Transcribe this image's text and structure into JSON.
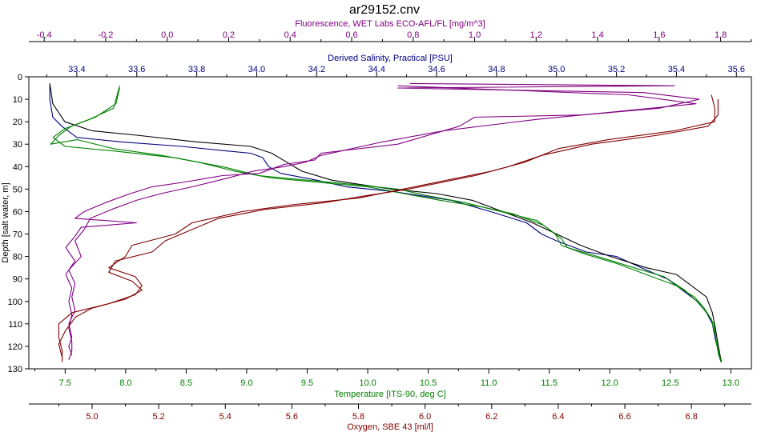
{
  "chart_data": {
    "type": "line",
    "title": "ar29152.cnv",
    "grid": false,
    "legend": "none",
    "y_axis": {
      "label": "Depth [salt water, m]",
      "range": [
        0,
        130
      ],
      "reversed": true,
      "ticks": [
        0,
        10,
        20,
        30,
        40,
        50,
        60,
        70,
        80,
        90,
        100,
        110,
        120,
        130
      ],
      "color": "#000000"
    },
    "x_axes": [
      {
        "key": "fluor",
        "label": "Fluorescence, WET Labs ECO-AFL/FL [mg/m^3]",
        "range": [
          -0.45,
          1.9
        ],
        "ticks": [
          -0.4,
          -0.2,
          0.0,
          0.2,
          0.4,
          0.6,
          0.8,
          1.0,
          1.2,
          1.4,
          1.6,
          1.8
        ],
        "color": "#800080",
        "position": "top-outer"
      },
      {
        "key": "sal",
        "label": "Derived Salinity, Practical [PSU]",
        "range": [
          33.24,
          35.65
        ],
        "ticks": [
          33.4,
          33.6,
          33.8,
          34.0,
          34.2,
          34.4,
          34.6,
          34.8,
          35.0,
          35.2,
          35.4,
          35.6
        ],
        "color": "#000080",
        "position": "top-inner"
      },
      {
        "key": "temp",
        "label": "Temperature [ITS-90, deg C]",
        "range": [
          7.2,
          13.17
        ],
        "ticks": [
          7.5,
          8.0,
          8.5,
          9.0,
          9.5,
          10.0,
          10.5,
          11.0,
          11.5,
          12.0,
          12.5,
          13.0
        ],
        "color": "#008000",
        "position": "bottom-inner"
      },
      {
        "key": "oxy",
        "label": "Oxygen, SBE 43 [ml/l]",
        "range": [
          4.81,
          6.98
        ],
        "ticks": [
          5.0,
          5.2,
          5.4,
          5.6,
          5.8,
          6.0,
          6.2,
          6.4,
          6.6,
          6.8
        ],
        "color": "#800000",
        "position": "bottom-outer"
      }
    ],
    "series": [
      {
        "axis": "sal",
        "color": "#000080",
        "points": [
          [
            33.31,
            3
          ],
          [
            33.31,
            10
          ],
          [
            33.32,
            18
          ],
          [
            33.35,
            22
          ],
          [
            33.4,
            27
          ],
          [
            33.55,
            29
          ],
          [
            33.75,
            31
          ],
          [
            33.9,
            33
          ],
          [
            33.98,
            34
          ],
          [
            34.02,
            36
          ],
          [
            34.04,
            40
          ],
          [
            34.08,
            43
          ],
          [
            34.2,
            46
          ],
          [
            34.3,
            49
          ],
          [
            34.45,
            51
          ],
          [
            34.55,
            53
          ],
          [
            34.65,
            55
          ],
          [
            34.78,
            60
          ],
          [
            34.9,
            65
          ],
          [
            34.95,
            70
          ],
          [
            35.0,
            73
          ],
          [
            35.1,
            78
          ],
          [
            35.2,
            80
          ],
          [
            35.3,
            86
          ],
          [
            35.37,
            90
          ],
          [
            35.42,
            95
          ],
          [
            35.47,
            100
          ],
          [
            35.5,
            105
          ],
          [
            35.52,
            110
          ],
          [
            35.53,
            117
          ],
          [
            35.54,
            122
          ],
          [
            35.55,
            127
          ]
        ]
      },
      {
        "axis": "sal",
        "color": "#000000",
        "points": [
          [
            33.31,
            3
          ],
          [
            33.32,
            12
          ],
          [
            33.36,
            20
          ],
          [
            33.45,
            24
          ],
          [
            33.6,
            26
          ],
          [
            33.8,
            29
          ],
          [
            33.98,
            31
          ],
          [
            34.05,
            34
          ],
          [
            34.1,
            38
          ],
          [
            34.15,
            42
          ],
          [
            34.25,
            46
          ],
          [
            34.35,
            48
          ],
          [
            34.45,
            50
          ],
          [
            34.6,
            52
          ],
          [
            34.72,
            55
          ],
          [
            34.82,
            60
          ],
          [
            34.92,
            65
          ],
          [
            35.0,
            70
          ],
          [
            35.08,
            75
          ],
          [
            35.18,
            80
          ],
          [
            35.3,
            85
          ],
          [
            35.4,
            88
          ],
          [
            35.45,
            93
          ],
          [
            35.5,
            98
          ],
          [
            35.52,
            105
          ],
          [
            35.53,
            112
          ],
          [
            35.54,
            120
          ],
          [
            35.55,
            127
          ]
        ]
      },
      {
        "axis": "temp",
        "color": "#008000",
        "points": [
          [
            7.95,
            5
          ],
          [
            7.92,
            12
          ],
          [
            7.75,
            18
          ],
          [
            7.55,
            22
          ],
          [
            7.45,
            26
          ],
          [
            7.38,
            30
          ],
          [
            7.6,
            28
          ],
          [
            7.9,
            32
          ],
          [
            8.3,
            35
          ],
          [
            8.6,
            38
          ],
          [
            8.9,
            42
          ],
          [
            9.2,
            45
          ],
          [
            9.6,
            47
          ],
          [
            10.0,
            49
          ],
          [
            10.3,
            52
          ],
          [
            10.6,
            55
          ],
          [
            10.95,
            58
          ],
          [
            11.2,
            61
          ],
          [
            11.45,
            66
          ],
          [
            11.6,
            72
          ],
          [
            11.65,
            76
          ],
          [
            11.9,
            80
          ],
          [
            12.2,
            85
          ],
          [
            12.45,
            89
          ],
          [
            12.62,
            95
          ],
          [
            12.72,
            100
          ],
          [
            12.8,
            105
          ],
          [
            12.86,
            110
          ],
          [
            12.88,
            118
          ],
          [
            12.9,
            124
          ],
          [
            12.92,
            127
          ]
        ]
      },
      {
        "axis": "temp",
        "color": "#008000",
        "points": [
          [
            7.95,
            4
          ],
          [
            7.9,
            14
          ],
          [
            7.7,
            19
          ],
          [
            7.5,
            23
          ],
          [
            7.4,
            27
          ],
          [
            7.5,
            31
          ],
          [
            7.9,
            33
          ],
          [
            8.4,
            36
          ],
          [
            8.8,
            40
          ],
          [
            9.1,
            44
          ],
          [
            9.5,
            46
          ],
          [
            9.9,
            48
          ],
          [
            10.25,
            50
          ],
          [
            10.5,
            53
          ],
          [
            10.8,
            56
          ],
          [
            11.1,
            60
          ],
          [
            11.4,
            64
          ],
          [
            11.55,
            70
          ],
          [
            11.6,
            75
          ],
          [
            11.8,
            79
          ],
          [
            12.05,
            83
          ],
          [
            12.3,
            88
          ],
          [
            12.55,
            93
          ],
          [
            12.7,
            98
          ],
          [
            12.78,
            103
          ],
          [
            12.84,
            108
          ],
          [
            12.87,
            115
          ],
          [
            12.9,
            122
          ],
          [
            12.92,
            127
          ]
        ]
      },
      {
        "axis": "fluor",
        "color": "#800080",
        "points": [
          [
            0.79,
            3
          ],
          [
            1.65,
            4
          ],
          [
            0.75,
            5
          ],
          [
            1.55,
            7
          ],
          [
            1.73,
            10
          ],
          [
            1.6,
            14
          ],
          [
            1.35,
            17
          ],
          [
            1.0,
            18
          ],
          [
            0.95,
            22
          ],
          [
            0.85,
            26
          ],
          [
            0.75,
            30
          ],
          [
            0.5,
            34
          ],
          [
            0.48,
            37
          ],
          [
            0.38,
            39
          ],
          [
            0.3,
            43
          ],
          [
            0.18,
            44
          ],
          [
            0.05,
            47
          ],
          [
            -0.05,
            49
          ],
          [
            -0.12,
            52
          ],
          [
            -0.2,
            56
          ],
          [
            -0.27,
            60
          ],
          [
            -0.3,
            63
          ],
          [
            -0.1,
            65
          ],
          [
            -0.28,
            67
          ],
          [
            -0.3,
            71
          ],
          [
            -0.33,
            76
          ],
          [
            -0.3,
            82
          ],
          [
            -0.33,
            88
          ],
          [
            -0.31,
            94
          ],
          [
            -0.32,
            100
          ],
          [
            -0.31,
            106
          ],
          [
            -0.32,
            112
          ],
          [
            -0.31,
            118
          ],
          [
            -0.31,
            122
          ],
          [
            -0.32,
            126
          ]
        ]
      },
      {
        "axis": "fluor",
        "color": "#800080",
        "points": [
          [
            0.75,
            4
          ],
          [
            1.5,
            8
          ],
          [
            1.72,
            12
          ],
          [
            1.5,
            15
          ],
          [
            1.2,
            19
          ],
          [
            0.9,
            24
          ],
          [
            0.7,
            29
          ],
          [
            0.5,
            35
          ],
          [
            0.45,
            38
          ],
          [
            0.38,
            40
          ],
          [
            0.28,
            42
          ],
          [
            0.2,
            45
          ],
          [
            0.08,
            49
          ],
          [
            -0.02,
            52
          ],
          [
            -0.1,
            55
          ],
          [
            -0.18,
            59
          ],
          [
            -0.25,
            63
          ],
          [
            -0.27,
            68
          ],
          [
            -0.3,
            73
          ],
          [
            -0.28,
            80
          ],
          [
            -0.32,
            86
          ],
          [
            -0.3,
            92
          ],
          [
            -0.31,
            98
          ],
          [
            -0.3,
            104
          ],
          [
            -0.32,
            110
          ],
          [
            -0.31,
            116
          ],
          [
            -0.32,
            120
          ],
          [
            -0.31,
            124
          ]
        ]
      },
      {
        "axis": "oxy",
        "color": "#800000",
        "points": [
          [
            6.86,
            8
          ],
          [
            6.87,
            14
          ],
          [
            6.87,
            20
          ],
          [
            6.75,
            24
          ],
          [
            6.55,
            28
          ],
          [
            6.4,
            32
          ],
          [
            6.3,
            38
          ],
          [
            6.2,
            42
          ],
          [
            6.1,
            45
          ],
          [
            6.0,
            48
          ],
          [
            5.9,
            51
          ],
          [
            5.8,
            54
          ],
          [
            5.6,
            57
          ],
          [
            5.45,
            60
          ],
          [
            5.3,
            65
          ],
          [
            5.25,
            70
          ],
          [
            5.12,
            75
          ],
          [
            5.1,
            80
          ],
          [
            5.05,
            85
          ],
          [
            5.13,
            89
          ],
          [
            5.15,
            93
          ],
          [
            5.13,
            97
          ],
          [
            5.05,
            101
          ],
          [
            4.94,
            105
          ],
          [
            4.9,
            110
          ],
          [
            4.9,
            116
          ],
          [
            4.91,
            122
          ],
          [
            4.91,
            127
          ]
        ]
      },
      {
        "axis": "oxy",
        "color": "#800000",
        "points": [
          [
            6.88,
            10
          ],
          [
            6.88,
            17
          ],
          [
            6.85,
            22
          ],
          [
            6.7,
            26
          ],
          [
            6.5,
            30
          ],
          [
            6.35,
            35
          ],
          [
            6.25,
            40
          ],
          [
            6.15,
            44
          ],
          [
            6.05,
            47
          ],
          [
            5.95,
            50
          ],
          [
            5.82,
            53
          ],
          [
            5.7,
            56
          ],
          [
            5.52,
            59
          ],
          [
            5.38,
            63
          ],
          [
            5.3,
            68
          ],
          [
            5.22,
            73
          ],
          [
            5.18,
            78
          ],
          [
            5.07,
            82
          ],
          [
            5.05,
            87
          ],
          [
            5.12,
            91
          ],
          [
            5.15,
            95
          ],
          [
            5.1,
            99
          ],
          [
            5.0,
            103
          ],
          [
            4.95,
            107
          ],
          [
            4.92,
            113
          ],
          [
            4.9,
            119
          ],
          [
            4.91,
            125
          ]
        ]
      }
    ]
  }
}
